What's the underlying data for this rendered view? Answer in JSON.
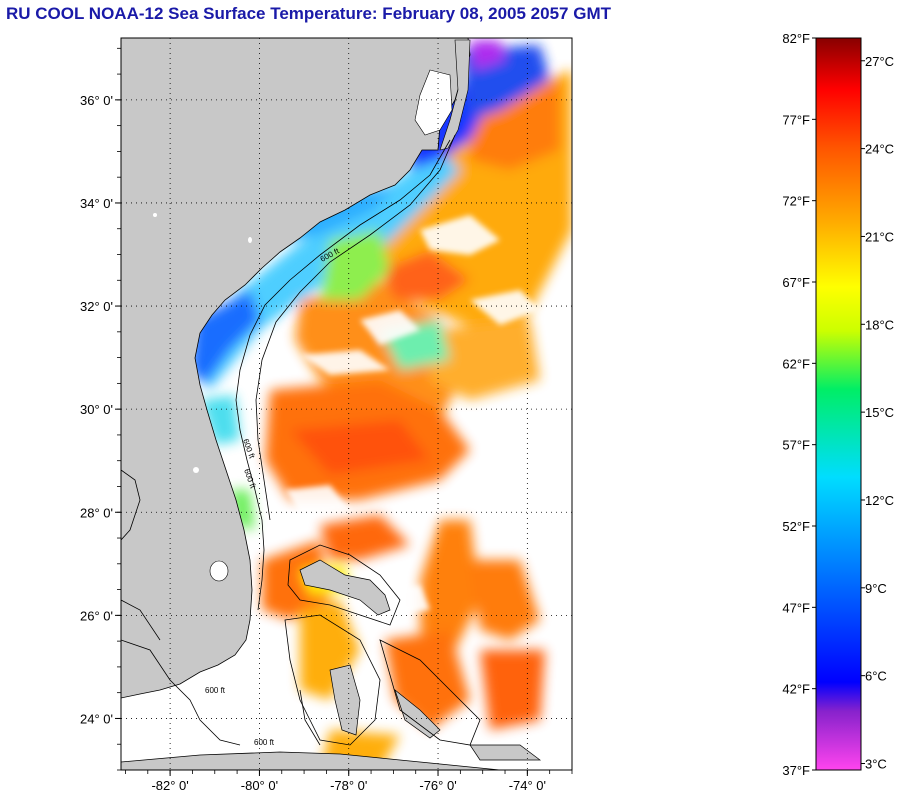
{
  "title": "RU COOL  NOAA-12  Sea Surface Temperature:  February 08, 2005 2057 GMT",
  "map": {
    "lat_labels": [
      "36° 0'",
      "34° 0'",
      "32° 0'",
      "30° 0'",
      "28° 0'",
      "26° 0'",
      "24° 0'"
    ],
    "lon_labels": [
      "-82° 0'",
      "-80° 0'",
      "-78° 0'",
      "-76° 0'",
      "-74° 0'"
    ],
    "lat_range": [
      23.0,
      37.2
    ],
    "lon_range": [
      -83.1,
      -73.0
    ],
    "contour_label": "600 ft",
    "land_color": "#c8c8c8",
    "grid": "dotted"
  },
  "colorbar": {
    "fahrenheit_labels": [
      "82°F",
      "77°F",
      "72°F",
      "67°F",
      "62°F",
      "57°F",
      "52°F",
      "47°F",
      "42°F",
      "37°F"
    ],
    "celsius_labels": [
      "27°C",
      "24°C",
      "21°C",
      "18°C",
      "15°C",
      "12°C",
      "9°C",
      "6°C",
      "3°C"
    ],
    "range_f": [
      37,
      82
    ],
    "colors": [
      "#ff44ee",
      "#7a22dd",
      "#0000ff",
      "#0077ff",
      "#00ddff",
      "#00ee88",
      "#88ee22",
      "#ffff00",
      "#ffaa00",
      "#ff6600",
      "#ff0000",
      "#880000"
    ]
  }
}
